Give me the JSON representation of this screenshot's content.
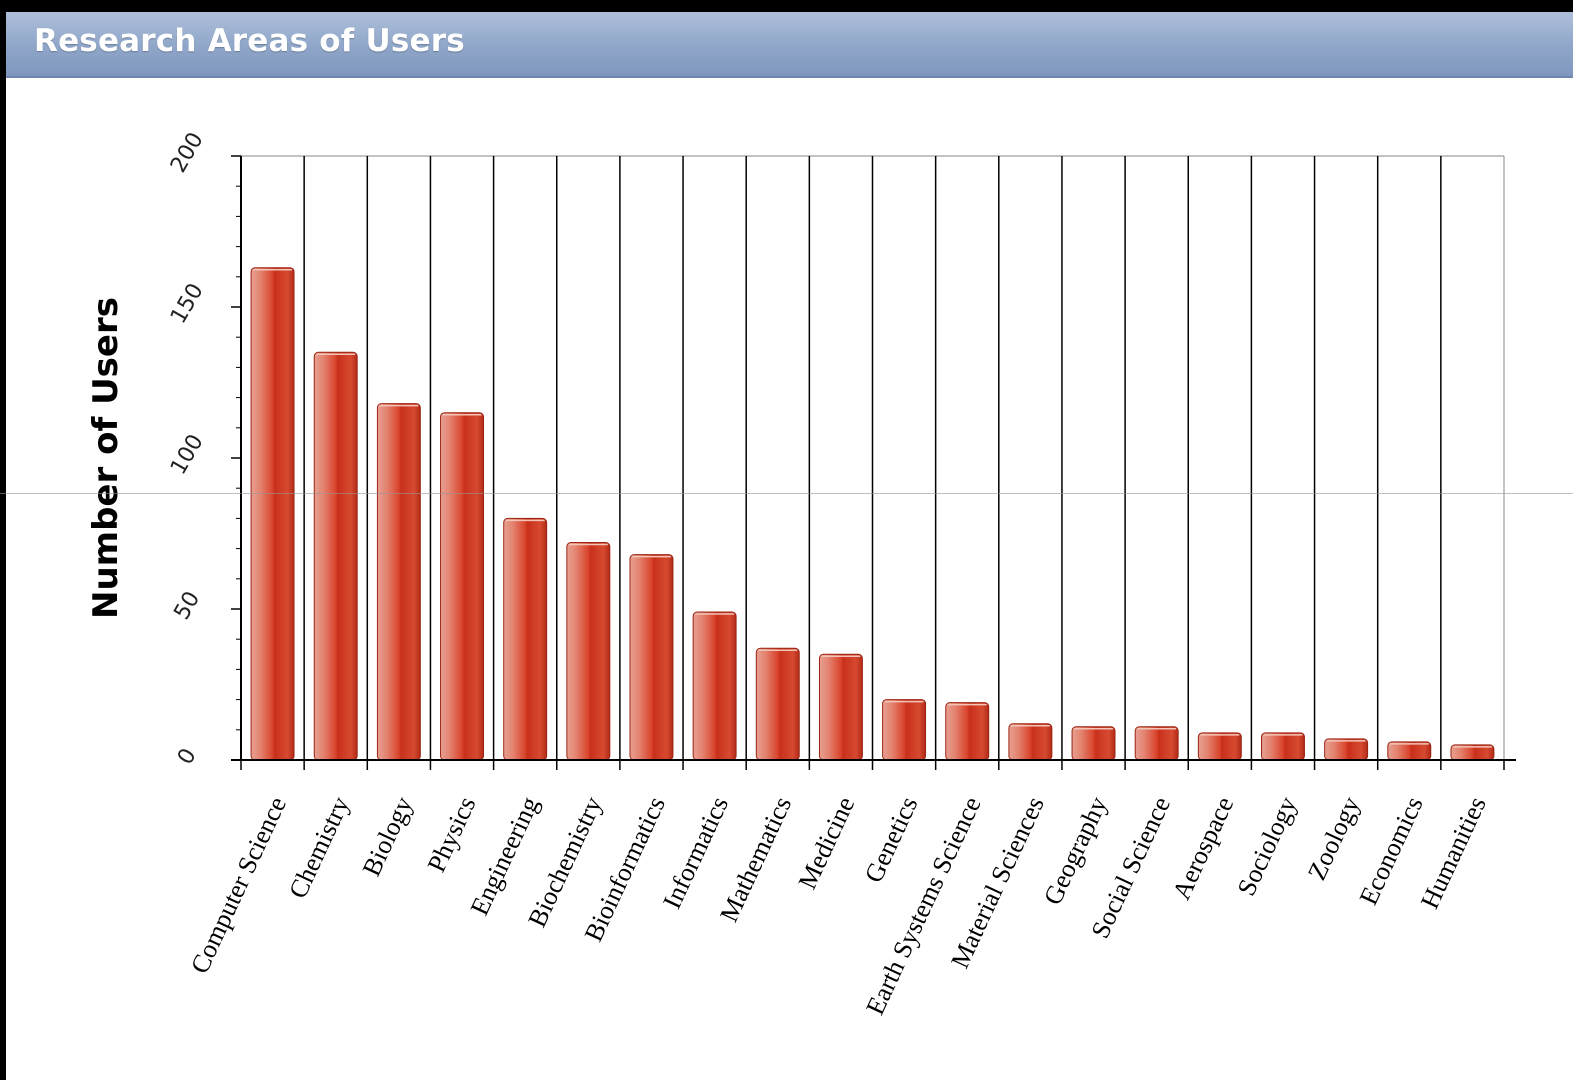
{
  "header": {
    "title": "Research Areas of Users"
  },
  "chart_data": {
    "type": "bar",
    "title": "Research Areas of Users",
    "xlabel": "",
    "ylabel": "Number of Users",
    "ylim": [
      0,
      200
    ],
    "yticks": [
      "0",
      "50",
      "100",
      "150",
      "200"
    ],
    "grid": "vertical",
    "legend": "none",
    "bar_color": "#d9442c",
    "categories": [
      "Computer Science",
      "Chemistry",
      "Biology",
      "Physics",
      "Engineering",
      "Biochemistry",
      "Bioinformatics",
      "Informatics",
      "Mathematics",
      "Medicine",
      "Genetics",
      "Earth Systems Science",
      "Material Sciences",
      "Geography",
      "Social Science",
      "Aerospace",
      "Sociology",
      "Zoology",
      "Economics",
      "Humanities"
    ],
    "values": [
      163,
      135,
      118,
      115,
      80,
      72,
      68,
      49,
      37,
      35,
      20,
      19,
      12,
      11,
      11,
      9,
      9,
      7,
      6,
      5
    ]
  }
}
